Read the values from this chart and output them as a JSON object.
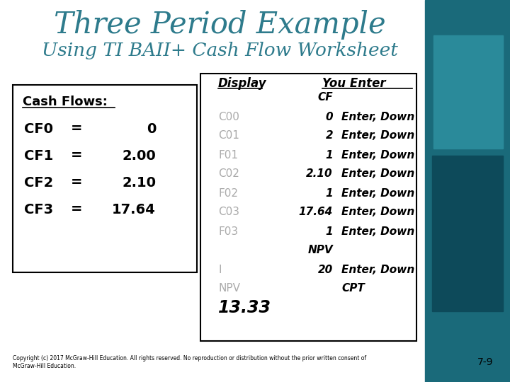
{
  "title1": "Three Period Example",
  "title2": "Using TI BAII+ Cash Flow Worksheet",
  "title1_color": "#2e7b8c",
  "title2_color": "#2e7b8c",
  "bg_color": "#ffffff",
  "cash_flows_label": "Cash Flows:",
  "cf_rows": [
    [
      "CF0",
      "=",
      "0"
    ],
    [
      "CF1",
      "=",
      "2.00"
    ],
    [
      "CF2",
      "=",
      "2.10"
    ],
    [
      "CF3",
      "=",
      "17.64"
    ]
  ],
  "display_header": "Display",
  "you_enter_header": "You Enter",
  "row_configs": [
    {
      "d": "",
      "v": "CF",
      "a": "",
      "gd": false,
      "gv": false,
      "bd": false,
      "bv": true,
      "ba": false,
      "large": false
    },
    {
      "d": "C00",
      "v": "0",
      "a": "Enter, Down",
      "gd": true,
      "gv": false,
      "bd": false,
      "bv": true,
      "ba": true,
      "large": false
    },
    {
      "d": "C01",
      "v": "2",
      "a": "Enter, Down",
      "gd": true,
      "gv": false,
      "bd": false,
      "bv": true,
      "ba": true,
      "large": false
    },
    {
      "d": "F01",
      "v": "1",
      "a": "Enter, Down",
      "gd": true,
      "gv": false,
      "bd": false,
      "bv": true,
      "ba": true,
      "large": false
    },
    {
      "d": "C02",
      "v": "2.10",
      "a": "Enter, Down",
      "gd": true,
      "gv": false,
      "bd": false,
      "bv": true,
      "ba": true,
      "large": false
    },
    {
      "d": "F02",
      "v": "1",
      "a": "Enter, Down",
      "gd": true,
      "gv": false,
      "bd": false,
      "bv": true,
      "ba": true,
      "large": false
    },
    {
      "d": "C03",
      "v": "17.64",
      "a": "Enter, Down",
      "gd": true,
      "gv": false,
      "bd": false,
      "bv": true,
      "ba": true,
      "large": false
    },
    {
      "d": "F03",
      "v": "1",
      "a": "Enter, Down",
      "gd": true,
      "gv": false,
      "bd": false,
      "bv": true,
      "ba": true,
      "large": false
    },
    {
      "d": "",
      "v": "NPV",
      "a": "",
      "gd": false,
      "gv": false,
      "bd": false,
      "bv": true,
      "ba": false,
      "large": false
    },
    {
      "d": "I",
      "v": "20",
      "a": "Enter, Down",
      "gd": true,
      "gv": false,
      "bd": false,
      "bv": true,
      "ba": true,
      "large": false
    },
    {
      "d": "NPV",
      "v": "",
      "a": "CPT",
      "gd": true,
      "gv": false,
      "bd": false,
      "bv": false,
      "ba": true,
      "large": false
    },
    {
      "d": "13.33",
      "v": "",
      "a": "",
      "gd": false,
      "gv": false,
      "bd": true,
      "bv": false,
      "ba": false,
      "large": true
    }
  ],
  "copyright_text": "Copyright (c) 2017 McGraw-Hill Education. All rights reserved. No reproduction or distribution without the prior written consent of\nMcGraw-Hill Education.",
  "page_num": "7-9",
  "right_teal1": "#1a6a7a",
  "right_teal2": "#0d4a5a",
  "right_teal3": "#2a8a9a"
}
